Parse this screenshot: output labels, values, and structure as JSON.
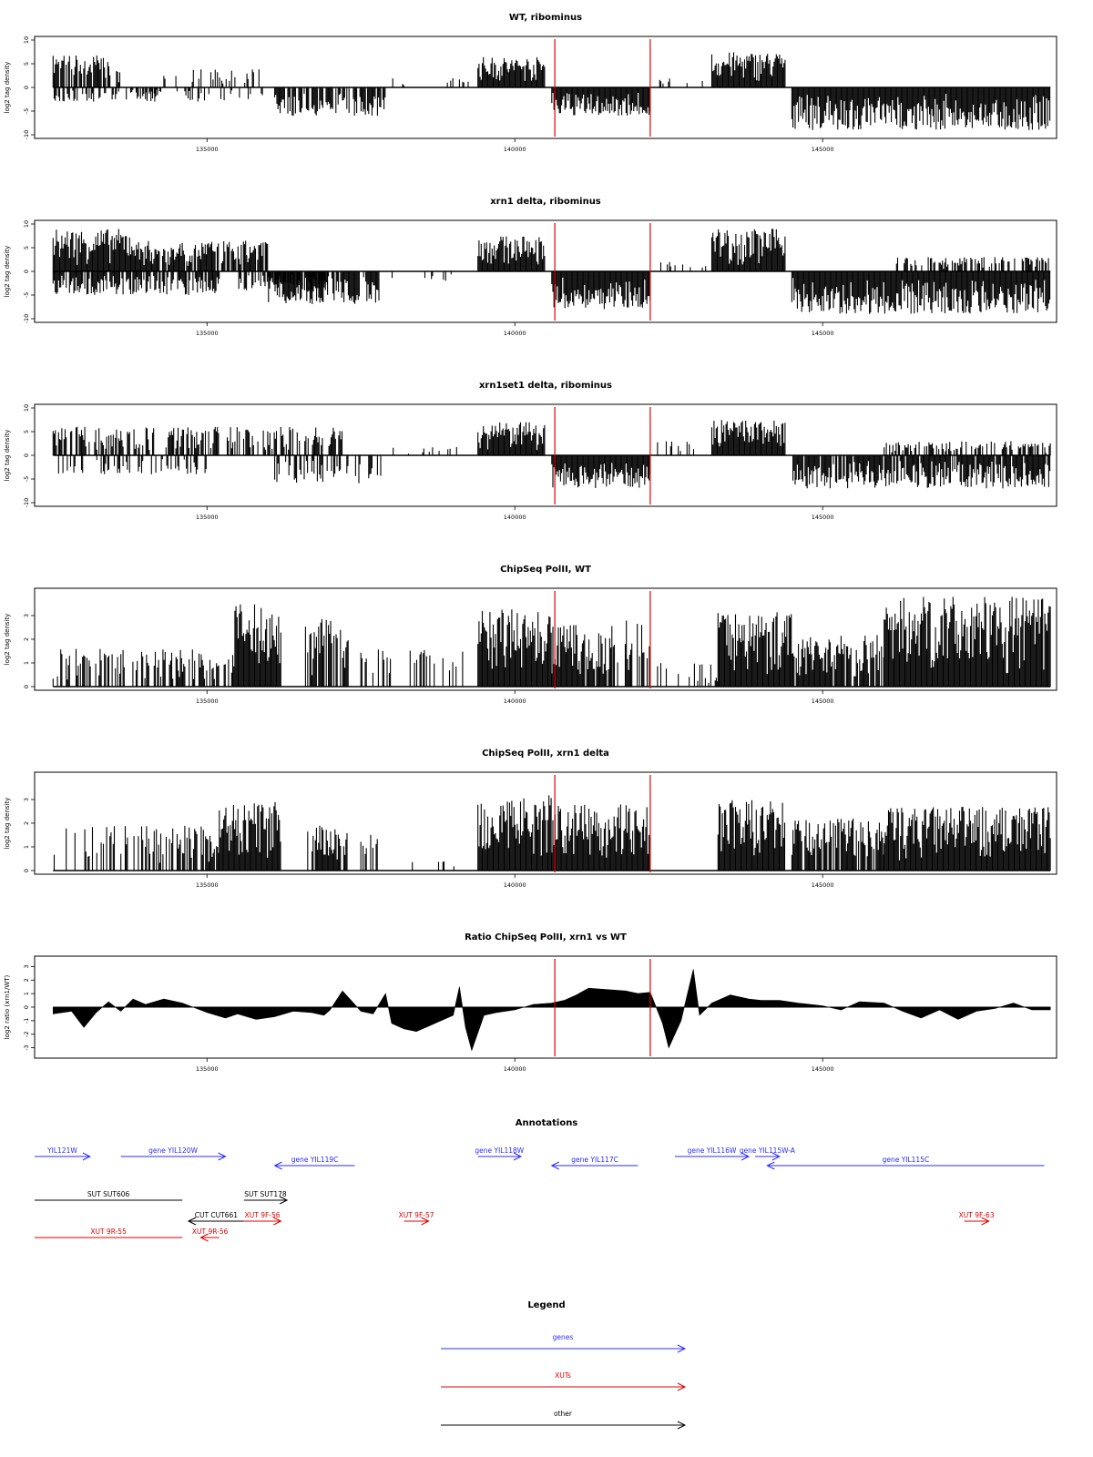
{
  "colors": {
    "signal": "#000000",
    "marker": "#e00000",
    "genes": "#2b2bff",
    "xuts": "#e00000",
    "other": "#000000",
    "frame": "#000000"
  },
  "chart_data": [
    {
      "type": "bar",
      "title": "WT, ribominus",
      "ylabel": "log2 tag density",
      "ylim": [
        -10,
        10
      ],
      "yticks": [
        "10",
        "5",
        "0",
        "-5",
        "-10"
      ],
      "xlim": [
        132200,
        148800
      ],
      "xticks": [
        "135000",
        "140000",
        "145000"
      ],
      "markers": [
        140650,
        142200
      ],
      "segments": [
        {
          "from": 132500,
          "to": 133600,
          "level": 7,
          "dir": 1,
          "density": 0.8
        },
        {
          "from": 132500,
          "to": 134200,
          "level": 3,
          "dir": -1,
          "density": 0.5
        },
        {
          "from": 134300,
          "to": 136000,
          "level": 4,
          "dir": 1,
          "density": 0.4
        },
        {
          "from": 134000,
          "to": 136000,
          "level": 3,
          "dir": -1,
          "density": 0.3
        },
        {
          "from": 136100,
          "to": 137900,
          "level": 6,
          "dir": -1,
          "density": 0.7
        },
        {
          "from": 138000,
          "to": 139300,
          "level": 2,
          "dir": 1,
          "density": 0.1
        },
        {
          "from": 139400,
          "to": 140500,
          "level": 6.5,
          "dir": 1,
          "density": 1.0
        },
        {
          "from": 140600,
          "to": 142200,
          "level": 6,
          "dir": -1,
          "density": 1.0
        },
        {
          "from": 142300,
          "to": 143100,
          "level": 2,
          "dir": 1,
          "density": 0.1
        },
        {
          "from": 143200,
          "to": 144400,
          "level": 7.5,
          "dir": 1,
          "density": 1.0
        },
        {
          "from": 144500,
          "to": 148700,
          "level": 9,
          "dir": -1,
          "density": 1.0
        }
      ]
    },
    {
      "type": "bar",
      "title": "xrn1 delta, ribominus",
      "ylabel": "log2 tag density",
      "ylim": [
        -10,
        10
      ],
      "yticks": [
        "10",
        "5",
        "0",
        "-5",
        "-10"
      ],
      "xlim": [
        132200,
        148800
      ],
      "xticks": [
        "135000",
        "140000",
        "145000"
      ],
      "markers": [
        140650,
        142200
      ],
      "segments": [
        {
          "from": 132500,
          "to": 133800,
          "level": 9,
          "dir": 1,
          "density": 1.0
        },
        {
          "from": 132500,
          "to": 135200,
          "level": 5,
          "dir": -1,
          "density": 0.8
        },
        {
          "from": 133800,
          "to": 136000,
          "level": 6.5,
          "dir": 1,
          "density": 0.9
        },
        {
          "from": 135500,
          "to": 137000,
          "level": 4,
          "dir": -1,
          "density": 0.6
        },
        {
          "from": 136000,
          "to": 137800,
          "level": 7,
          "dir": -1,
          "density": 0.9
        },
        {
          "from": 137900,
          "to": 139300,
          "level": 2,
          "dir": -1,
          "density": 0.1
        },
        {
          "from": 139400,
          "to": 140500,
          "level": 7.5,
          "dir": 1,
          "density": 1.0
        },
        {
          "from": 140600,
          "to": 142200,
          "level": 8,
          "dir": -1,
          "density": 1.0
        },
        {
          "from": 142300,
          "to": 143100,
          "level": 2,
          "dir": 1,
          "density": 0.15
        },
        {
          "from": 143200,
          "to": 144400,
          "level": 9,
          "dir": 1,
          "density": 1.0
        },
        {
          "from": 144500,
          "to": 148700,
          "level": 9,
          "dir": -1,
          "density": 1.0
        },
        {
          "from": 146200,
          "to": 148700,
          "level": 3,
          "dir": 1,
          "density": 0.5
        }
      ]
    },
    {
      "type": "bar",
      "title": "xrn1set1 delta, ribominus",
      "ylabel": "log2 tag density",
      "ylim": [
        -10,
        10
      ],
      "yticks": [
        "10",
        "5",
        "0",
        "-5",
        "-10"
      ],
      "xlim": [
        132200,
        148800
      ],
      "xticks": [
        "135000",
        "140000",
        "145000"
      ],
      "markers": [
        140650,
        142200
      ],
      "segments": [
        {
          "from": 132500,
          "to": 134200,
          "level": 6,
          "dir": 1,
          "density": 0.5
        },
        {
          "from": 132500,
          "to": 135000,
          "level": 4,
          "dir": -1,
          "density": 0.4
        },
        {
          "from": 134300,
          "to": 137200,
          "level": 6,
          "dir": 1,
          "density": 0.6
        },
        {
          "from": 136100,
          "to": 137900,
          "level": 6,
          "dir": -1,
          "density": 0.5
        },
        {
          "from": 137900,
          "to": 139300,
          "level": 2,
          "dir": 1,
          "density": 0.15
        },
        {
          "from": 139400,
          "to": 140500,
          "level": 7,
          "dir": 1,
          "density": 1.0
        },
        {
          "from": 140600,
          "to": 142200,
          "level": 7,
          "dir": -1,
          "density": 1.0
        },
        {
          "from": 142300,
          "to": 143100,
          "level": 3,
          "dir": 1,
          "density": 0.2
        },
        {
          "from": 143200,
          "to": 144400,
          "level": 7.5,
          "dir": 1,
          "density": 1.0
        },
        {
          "from": 144500,
          "to": 148700,
          "level": 7,
          "dir": -1,
          "density": 0.9
        },
        {
          "from": 146000,
          "to": 148700,
          "level": 3,
          "dir": 1,
          "density": 0.5
        }
      ]
    },
    {
      "type": "bar",
      "title": "ChipSeq PolII, WT",
      "ylabel": "log2 tag density",
      "ylim": [
        0,
        4
      ],
      "yticks": [
        "3",
        "2",
        "1",
        "0"
      ],
      "xlim": [
        132200,
        148800
      ],
      "xticks": [
        "135000",
        "140000",
        "145000"
      ],
      "markers": [
        140650,
        142200
      ],
      "segments": [
        {
          "from": 132500,
          "to": 134000,
          "level": 1.6,
          "dir": 1,
          "density": 0.4
        },
        {
          "from": 134000,
          "to": 135400,
          "level": 1.6,
          "dir": 1,
          "density": 0.6
        },
        {
          "from": 135400,
          "to": 136200,
          "level": 3.5,
          "dir": 1,
          "density": 1.0
        },
        {
          "from": 136600,
          "to": 137300,
          "level": 2.9,
          "dir": 1,
          "density": 0.8
        },
        {
          "from": 137500,
          "to": 138000,
          "level": 1.6,
          "dir": 1,
          "density": 0.5
        },
        {
          "from": 138300,
          "to": 139200,
          "level": 1.6,
          "dir": 1,
          "density": 0.3
        },
        {
          "from": 139400,
          "to": 140600,
          "level": 3.3,
          "dir": 1,
          "density": 1.0
        },
        {
          "from": 140600,
          "to": 141600,
          "level": 2.6,
          "dir": 1,
          "density": 0.9
        },
        {
          "from": 141600,
          "to": 142200,
          "level": 2.8,
          "dir": 1,
          "density": 0.5
        },
        {
          "from": 142300,
          "to": 142900,
          "level": 1,
          "dir": 1,
          "density": 0.1
        },
        {
          "from": 142900,
          "to": 143300,
          "level": 1,
          "dir": 1,
          "density": 0.5
        },
        {
          "from": 143300,
          "to": 144500,
          "level": 3.2,
          "dir": 1,
          "density": 1.0
        },
        {
          "from": 144500,
          "to": 146000,
          "level": 2.2,
          "dir": 1,
          "density": 0.9
        },
        {
          "from": 146000,
          "to": 148700,
          "level": 3.8,
          "dir": 1,
          "density": 1.0
        }
      ]
    },
    {
      "type": "bar",
      "title": "ChipSeq PolII, xrn1 delta",
      "ylabel": "log2 tag density",
      "ylim": [
        0,
        4
      ],
      "yticks": [
        "3",
        "2",
        "1",
        "0"
      ],
      "xlim": [
        132200,
        148800
      ],
      "xticks": [
        "135000",
        "140000",
        "145000"
      ],
      "markers": [
        140650,
        142200
      ],
      "segments": [
        {
          "from": 132500,
          "to": 134000,
          "level": 1.9,
          "dir": 1,
          "density": 0.3
        },
        {
          "from": 134000,
          "to": 135200,
          "level": 1.9,
          "dir": 1,
          "density": 0.6
        },
        {
          "from": 135200,
          "to": 136200,
          "level": 2.9,
          "dir": 1,
          "density": 1.0
        },
        {
          "from": 136600,
          "to": 137300,
          "level": 1.9,
          "dir": 1,
          "density": 0.8
        },
        {
          "from": 137500,
          "to": 137800,
          "level": 1.6,
          "dir": 1,
          "density": 0.5
        },
        {
          "from": 138300,
          "to": 139200,
          "level": 0.4,
          "dir": 1,
          "density": 0.1
        },
        {
          "from": 139400,
          "to": 140600,
          "level": 3.2,
          "dir": 1,
          "density": 1.0
        },
        {
          "from": 140600,
          "to": 142200,
          "level": 2.8,
          "dir": 1,
          "density": 1.0
        },
        {
          "from": 143300,
          "to": 144400,
          "level": 3.0,
          "dir": 1,
          "density": 1.0
        },
        {
          "from": 144500,
          "to": 146000,
          "level": 2.2,
          "dir": 1,
          "density": 0.8
        },
        {
          "from": 146000,
          "to": 148700,
          "level": 2.7,
          "dir": 1,
          "density": 1.0
        }
      ]
    },
    {
      "type": "area",
      "title": "Ratio ChipSeq PolII, xrn1 vs WT",
      "ylabel": "log2 ratio (xrn1/WT)",
      "ylim": [
        -3.5,
        3.5
      ],
      "yticks": [
        "3",
        "2",
        "1",
        "0",
        "-1",
        "-2",
        "-3"
      ],
      "xlim": [
        132200,
        148800
      ],
      "xticks": [
        "135000",
        "140000",
        "145000"
      ],
      "markers": [
        140650,
        142200
      ],
      "x": [
        132500,
        132800,
        133000,
        133200,
        133400,
        133600,
        133800,
        134000,
        134300,
        134600,
        135000,
        135300,
        135500,
        135800,
        136100,
        136400,
        136700,
        136900,
        137000,
        137200,
        137500,
        137700,
        137900,
        138000,
        138200,
        138400,
        138600,
        138800,
        139000,
        139100,
        139200,
        139300,
        139500,
        139700,
        140000,
        140300,
        140600,
        140800,
        141000,
        141200,
        141500,
        141800,
        142000,
        142200,
        142400,
        142500,
        142700,
        142900,
        143000,
        143200,
        143500,
        143800,
        144000,
        144300,
        144600,
        145000,
        145300,
        145600,
        146000,
        146300,
        146600,
        146900,
        147200,
        147500,
        147800,
        148100,
        148400,
        148700
      ],
      "values": [
        -0.5,
        -0.3,
        -1.5,
        -0.4,
        0.4,
        -0.3,
        0.6,
        0.2,
        0.6,
        0.3,
        -0.4,
        -0.8,
        -0.5,
        -0.9,
        -0.7,
        -0.3,
        -0.4,
        -0.6,
        -0.2,
        1.2,
        -0.3,
        -0.5,
        1.0,
        -1.2,
        -1.6,
        -1.8,
        -1.4,
        -1.0,
        -0.6,
        1.5,
        -1.5,
        -3.2,
        -0.6,
        -0.4,
        -0.2,
        0.2,
        0.3,
        0.5,
        0.9,
        1.4,
        1.3,
        1.2,
        1.0,
        1.1,
        -1.2,
        -3.0,
        -1.0,
        2.8,
        -0.6,
        0.3,
        0.9,
        0.6,
        0.5,
        0.5,
        0.3,
        0.1,
        -0.2,
        0.4,
        0.3,
        -0.3,
        -0.8,
        -0.2,
        -0.9,
        -0.3,
        -0.1,
        0.3,
        -0.2,
        -0.2
      ]
    }
  ],
  "annotations": {
    "title": "Annotations",
    "genes": [
      {
        "label": "YIL121W",
        "from": 132200,
        "to": 133100,
        "dir": 1,
        "row": 0
      },
      {
        "label": "gene YIL120W",
        "from": 133600,
        "to": 135300,
        "dir": 1,
        "row": 0
      },
      {
        "label": "gene YIL119C",
        "from": 136100,
        "to": 137400,
        "dir": -1,
        "row": 1
      },
      {
        "label": "gene YIL118W",
        "from": 139400,
        "to": 140100,
        "dir": 1,
        "row": 0
      },
      {
        "label": "gene YIL117C",
        "from": 140600,
        "to": 142000,
        "dir": -1,
        "row": 1
      },
      {
        "label": "gene YIL116W",
        "from": 142600,
        "to": 143800,
        "dir": 1,
        "row": 0
      },
      {
        "label": "gene YIL115W-A",
        "from": 143900,
        "to": 144300,
        "dir": 1,
        "row": 0
      },
      {
        "label": "gene YIL115C",
        "from": 144100,
        "to": 148600,
        "dir": -1,
        "row": 1
      }
    ],
    "others": [
      {
        "label": "SUT SUT606",
        "from": 132200,
        "to": 134600,
        "dir": 0,
        "row": 2
      },
      {
        "label": "SUT SUT178",
        "from": 135600,
        "to": 136300,
        "dir": 1,
        "row": 2
      },
      {
        "label": "CUT CUT661",
        "from": 134700,
        "to": 135600,
        "dir": -1,
        "row": 3
      }
    ],
    "xuts": [
      {
        "label": "XUT 9R-55",
        "from": 132200,
        "to": 134600,
        "dir": 0,
        "row": 4
      },
      {
        "label": "XUT 9R-56",
        "from": 134900,
        "to": 135200,
        "dir": -1,
        "row": 4
      },
      {
        "label": "XUT 9F-56",
        "from": 135600,
        "to": 136200,
        "dir": 1,
        "row": 3
      },
      {
        "label": "XUT 9F-57",
        "from": 138200,
        "to": 138600,
        "dir": 1,
        "row": 3
      },
      {
        "label": "XUT 9F-63",
        "from": 147300,
        "to": 147700,
        "dir": 1,
        "row": 3
      }
    ]
  },
  "legend": {
    "title": "Legend",
    "items": [
      {
        "label": "genes",
        "color": "#2b2bff"
      },
      {
        "label": "XUTs",
        "color": "#e00000"
      },
      {
        "label": "other",
        "color": "#000000"
      }
    ]
  }
}
